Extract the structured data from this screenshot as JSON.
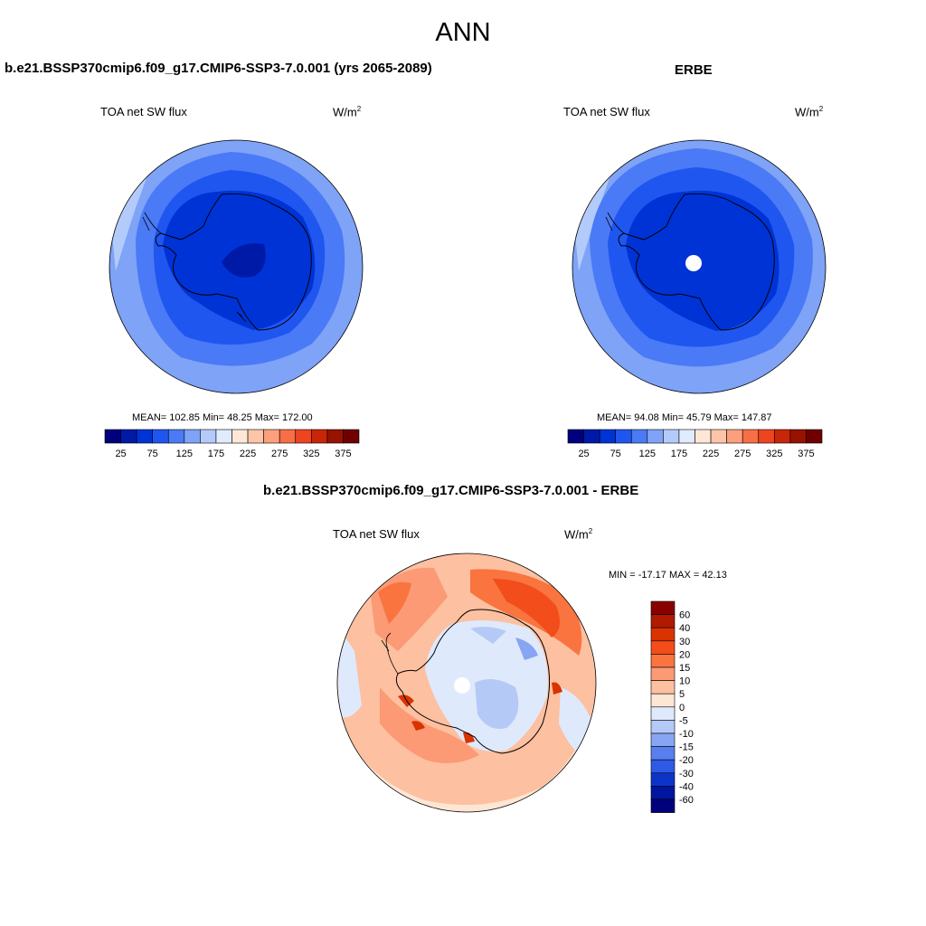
{
  "page": {
    "title": "ANN",
    "variable": "TOA net SW flux",
    "units_prefix": "W/m",
    "units_exp": "2"
  },
  "panels": {
    "model": {
      "title": "b.e21.BSSP370cmip6.f09_g17.CMIP6-SSP3-7.0.001 (yrs 2065-2089)",
      "stats": "MEAN= 102.85  Min=  48.25  Max= 172.00"
    },
    "obs": {
      "title": "ERBE",
      "stats": "MEAN=  94.08  Min=  45.79  Max= 147.87"
    },
    "diff": {
      "title": "b.e21.BSSP370cmip6.f09_g17.CMIP6-SSP3-7.0.001 - ERBE",
      "stats": "MIN = -17.17 MAX =  42.13"
    }
  },
  "colorbar_abs": {
    "labels": [
      "25",
      "75",
      "125",
      "175",
      "225",
      "275",
      "325",
      "375"
    ],
    "colors": [
      "#00007f",
      "#001aa8",
      "#0033d6",
      "#1f56f0",
      "#4a7af5",
      "#7ea3f7",
      "#b3cbfa",
      "#e0ebfd",
      "#fee7d6",
      "#fdc5a8",
      "#fc9f7c",
      "#f86e46",
      "#ee4420",
      "#c72708",
      "#981200",
      "#700000"
    ]
  },
  "colorbar_diff": {
    "labels": [
      "60",
      "40",
      "30",
      "20",
      "15",
      "10",
      "5",
      "0",
      "-5",
      "-10",
      "-15",
      "-20",
      "-30",
      "-40",
      "-60"
    ],
    "colors": [
      "#8a0000",
      "#b01a00",
      "#d93300",
      "#f24d1a",
      "#f9743f",
      "#fb9a74",
      "#fdc0a0",
      "#fee6d4",
      "#dfe9fc",
      "#b5c9f7",
      "#87a5f3",
      "#577ff0",
      "#2e5be6",
      "#0d33c9",
      "#0015a0",
      "#00007c"
    ]
  },
  "chart_data": [
    {
      "type": "heatmap",
      "title": "b.e21.BSSP370cmip6.f09_g17.CMIP6-SSP3-7.0.001 (yrs 2065-2089)",
      "projection": "south polar stereographic",
      "variable": "TOA net SW flux",
      "units": "W/m2",
      "mean": 102.85,
      "min": 48.25,
      "max": 172.0,
      "contour_levels": [
        25,
        50,
        75,
        100,
        125,
        150,
        175,
        200,
        225,
        250,
        275,
        300,
        325,
        350,
        375
      ]
    },
    {
      "type": "heatmap",
      "title": "ERBE",
      "projection": "south polar stereographic",
      "variable": "TOA net SW flux",
      "units": "W/m2",
      "mean": 94.08,
      "min": 45.79,
      "max": 147.87,
      "contour_levels": [
        25,
        50,
        75,
        100,
        125,
        150,
        175,
        200,
        225,
        250,
        275,
        300,
        325,
        350,
        375
      ]
    },
    {
      "type": "heatmap",
      "title": "b.e21.BSSP370cmip6.f09_g17.CMIP6-SSP3-7.0.001 - ERBE",
      "projection": "south polar stereographic",
      "variable": "TOA net SW flux",
      "units": "W/m2",
      "min": -17.17,
      "max": 42.13,
      "contour_levels": [
        -60,
        -40,
        -30,
        -20,
        -15,
        -10,
        -5,
        0,
        5,
        10,
        15,
        20,
        30,
        40,
        60
      ]
    }
  ]
}
